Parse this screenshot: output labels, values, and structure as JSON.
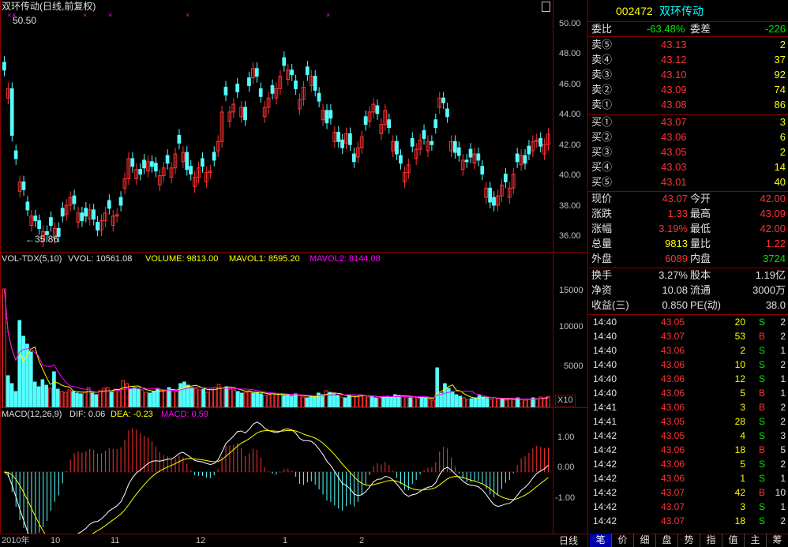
{
  "main_title": "双环传动(日线,前复权)",
  "price_high_label": "50.50",
  "price_low_label": "←35.86",
  "price_axis": [
    "50.00",
    "48.00",
    "46.00",
    "44.00",
    "42.00",
    "40.00",
    "38.00",
    "36.00"
  ],
  "vol_header": {
    "name": "VOL-TDX(5,10)",
    "vvol": "VVOL: 10561.08",
    "volume": "VOLUME: 9813.00",
    "mavol1": "MAVOL1: 8595.20",
    "mavol2": "MAVOL2: 8144.08"
  },
  "vol_axis": [
    "15000",
    "10000",
    "5000"
  ],
  "vol_unit": "X10",
  "macd_header": {
    "name": "MACD(12,26,9)",
    "dif": "DIF: 0.06",
    "dea": "DEA: -0.23",
    "macd": "MACD: 0.59"
  },
  "macd_axis": [
    "1.00",
    "0.00",
    "-1.00"
  ],
  "date_axis": [
    "2010年",
    "10",
    "11",
    "12",
    "1",
    "2"
  ],
  "period_tab": "日线",
  "colors": {
    "up": "#ff3232",
    "down": "#54ffff",
    "grid": "#8b0000",
    "dif": "#ffffff",
    "dea": "#ffff00",
    "macd_hist": "#ff00ff"
  },
  "quote": {
    "code": "002472",
    "name": "双环传动",
    "weibi_label": "委比",
    "weibi_value": "-63.48%",
    "weicha_label": "委差",
    "weicha_value": "-226",
    "asks": [
      {
        "label": "卖⑤",
        "price": "43.13",
        "vol": "2"
      },
      {
        "label": "卖④",
        "price": "43.12",
        "vol": "37"
      },
      {
        "label": "卖③",
        "price": "43.10",
        "vol": "92"
      },
      {
        "label": "卖②",
        "price": "43.09",
        "vol": "74"
      },
      {
        "label": "卖①",
        "price": "43.08",
        "vol": "86"
      }
    ],
    "bids": [
      {
        "label": "买①",
        "price": "43.07",
        "vol": "3"
      },
      {
        "label": "买②",
        "price": "43.06",
        "vol": "6"
      },
      {
        "label": "买③",
        "price": "43.05",
        "vol": "2"
      },
      {
        "label": "买④",
        "price": "43.03",
        "vol": "14"
      },
      {
        "label": "买⑤",
        "price": "43.01",
        "vol": "40"
      }
    ],
    "stats": [
      {
        "l1": "现价",
        "v1": "43.07",
        "l2": "今开",
        "v2": "42.00"
      },
      {
        "l1": "涨跌",
        "v1": "1.33",
        "l2": "最高",
        "v2": "43.09"
      },
      {
        "l1": "涨幅",
        "v1": "3.19%",
        "l2": "最低",
        "v2": "42.00"
      },
      {
        "l1": "总量",
        "v1": "9813",
        "l2": "量比",
        "v2": "1.22"
      },
      {
        "l1": "外盘",
        "v1": "6089",
        "l2": "内盘",
        "v2": "3724"
      }
    ],
    "stats2": [
      {
        "l1": "换手",
        "v1": "3.27%",
        "l2": "股本",
        "v2": "1.19亿"
      },
      {
        "l1": "净资",
        "v1": "10.08",
        "l2": "流通",
        "v2": "3000万"
      },
      {
        "l1": "收益(三)",
        "v1": "0.850",
        "l2": "PE(动)",
        "v2": "38.0"
      }
    ]
  },
  "ticks": [
    {
      "time": "14:40",
      "price": "43.05",
      "vol": "20",
      "bs": "S",
      "n": "2"
    },
    {
      "time": "14:40",
      "price": "43.07",
      "vol": "53",
      "bs": "B",
      "n": "2"
    },
    {
      "time": "14:40",
      "price": "43.06",
      "vol": "2",
      "bs": "S",
      "n": "1"
    },
    {
      "time": "14:40",
      "price": "43.06",
      "vol": "10",
      "bs": "S",
      "n": "2"
    },
    {
      "time": "14:40",
      "price": "43.06",
      "vol": "12",
      "bs": "S",
      "n": "1"
    },
    {
      "time": "14:40",
      "price": "43.06",
      "vol": "5",
      "bs": "B",
      "n": "1"
    },
    {
      "time": "14:41",
      "price": "43.06",
      "vol": "3",
      "bs": "B",
      "n": "2"
    },
    {
      "time": "14:41",
      "price": "43.05",
      "vol": "28",
      "bs": "S",
      "n": "2"
    },
    {
      "time": "14:42",
      "price": "43.05",
      "vol": "4",
      "bs": "S",
      "n": "3"
    },
    {
      "time": "14:42",
      "price": "43.06",
      "vol": "18",
      "bs": "B",
      "n": "5"
    },
    {
      "time": "14:42",
      "price": "43.06",
      "vol": "5",
      "bs": "S",
      "n": "2"
    },
    {
      "time": "14:42",
      "price": "43.06",
      "vol": "1",
      "bs": "S",
      "n": "1"
    },
    {
      "time": "14:42",
      "price": "43.07",
      "vol": "42",
      "bs": "B",
      "n": "10"
    },
    {
      "time": "14:42",
      "price": "43.07",
      "vol": "3",
      "bs": "S",
      "n": "1"
    },
    {
      "time": "14:42",
      "price": "43.07",
      "vol": "18",
      "bs": "S",
      "n": "2"
    }
  ],
  "bottom_tabs": [
    "笔",
    "价",
    "细",
    "盘",
    "势",
    "指",
    "值",
    "主",
    "筹"
  ],
  "chart_data": {
    "type": "candlestick",
    "price_ylim": [
      35.5,
      51
    ],
    "high": 50.5,
    "low": 35.86,
    "candles_sample_close": [
      47.2,
      46,
      43,
      41.5,
      40,
      39.5,
      38.2,
      37.8,
      37.5,
      37.0,
      36.8,
      36.6,
      37.2,
      37.0,
      36.5,
      37.8,
      38.5,
      39.0,
      38.6,
      38.0,
      37.5,
      37.8,
      38.2,
      37.6,
      36.9,
      37.5,
      38.0,
      38.3,
      37.8,
      37.9,
      38.5,
      40.2,
      41.5,
      41.0,
      40.8,
      40.5,
      40.9,
      41.3,
      41.0,
      40.7,
      40.4,
      40.9,
      41.2,
      40.9,
      41.8,
      42.5,
      41.9,
      40.8,
      40.5,
      40.3,
      40.9,
      41.0,
      40.6,
      40.7,
      41.4,
      42.6,
      44.5,
      45.6,
      44.5,
      45.0,
      45.8,
      44.8,
      44.0,
      46.2,
      47.3,
      46.8,
      45.5,
      44.8,
      45.4,
      45.7,
      46.0,
      46.8,
      47.5,
      47.2,
      46.9,
      46.0,
      45.3,
      46.1,
      46.9,
      46.8,
      45.9,
      45.2,
      44.6,
      43.8,
      44.1,
      43.2,
      42.6,
      42.2,
      43.1,
      42.4,
      41.3,
      42.2,
      42.9,
      43.7,
      44.5,
      45.0,
      44.4,
      43.7,
      44.6,
      43.5,
      42.6,
      41.8,
      41.2,
      40.6,
      41.1,
      42.3,
      42.1,
      42.7,
      42.8,
      42.6,
      42.4,
      43.5,
      45.4,
      45.1,
      44.2,
      42.6,
      41.9,
      41.7,
      41.4,
      41.3,
      41.6,
      41.8,
      41.4,
      40.5,
      39.6,
      38.7,
      38.5,
      39.1,
      39.8,
      40.0,
      39.6,
      40.5,
      41.3,
      41.7,
      41.2,
      41.8,
      42.6,
      42.7,
      42.3,
      42.4,
      43.07
    ],
    "volume_ylim": [
      0,
      18000
    ],
    "volume_sample": [
      15000,
      4000,
      3000,
      2000,
      11000,
      9000,
      8000,
      7000,
      3200,
      2600,
      3500,
      2800,
      2400,
      4500,
      2300,
      2000,
      1900,
      2200,
      2000,
      1800,
      1700,
      1900,
      2500,
      1800,
      1600,
      2100,
      2400,
      2500,
      1900,
      2300,
      2200,
      3400,
      3000,
      2300,
      2500,
      2300,
      2200,
      1900,
      1800,
      2000,
      2400,
      2200,
      2100,
      2500,
      2100,
      2000,
      3000,
      3200,
      2800,
      2500,
      2400,
      2200,
      2300,
      1900,
      2300,
      2500,
      2900,
      2500,
      2600,
      2300,
      2200,
      2000,
      1800,
      1900,
      2100,
      1800,
      1900,
      1700,
      1500,
      1600,
      1800,
      1700,
      1600,
      1500,
      1600,
      1400,
      1700,
      1500,
      1300,
      1200,
      1400,
      1300,
      1800,
      1600,
      2100,
      1900,
      1700,
      1500,
      1300,
      1200,
      1500,
      1400,
      1400,
      1600,
      1500,
      1300,
      1400,
      1200,
      1100,
      1300,
      1400,
      1300,
      1600,
      1500,
      1400,
      1300,
      1200,
      1300,
      1100,
      1300,
      1200,
      1000,
      900,
      5000,
      1800,
      3000,
      2400,
      2000,
      1600,
      1400,
      1200,
      1000,
      1100,
      1200,
      1500,
      1300,
      1100,
      1000,
      1200,
      1100,
      1000,
      900,
      1100,
      1000,
      1200,
      1000,
      900,
      1000,
      1200,
      1100,
      1300,
      1200,
      1400
    ],
    "macd_ylim": [
      -1.9,
      1.6
    ],
    "dif": 0.06,
    "dea": -0.23,
    "macd": 0.59
  }
}
